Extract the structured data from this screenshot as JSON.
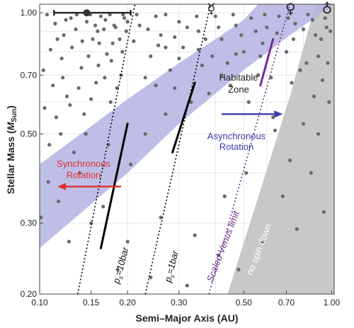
{
  "chart_data": {
    "type": "scatter",
    "x_scale": "log",
    "y_scale": "log",
    "xlim": [
      0.1,
      1.02
    ],
    "ylim": [
      0.2,
      1.05
    ],
    "xlabel": "Semi–Major Axis (AU)",
    "ylabel_main": "Stellar Mass (",
    "ylabel_unit": "M",
    "ylabel_sub": "Sun",
    "ylabel_close": ")",
    "xticks": [
      {
        "value": 0.1,
        "label": "0.10"
      },
      {
        "value": 0.15,
        "label": "0.15"
      },
      {
        "value": 0.2,
        "label": "0.20"
      },
      {
        "value": 0.3,
        "label": "0.30"
      },
      {
        "value": 0.5,
        "label": "0.50"
      },
      {
        "value": 0.7,
        "label": "0.70"
      },
      {
        "value": 1.0,
        "label": "1.00"
      }
    ],
    "yticks": [
      {
        "value": 0.2,
        "label": "0.20"
      },
      {
        "value": 0.3,
        "label": "0.30"
      },
      {
        "value": 0.5,
        "label": "0.50"
      },
      {
        "value": 0.7,
        "label": "0.70"
      },
      {
        "value": 1.0,
        "label": "1.00"
      }
    ],
    "grid": true,
    "planets": [
      {
        "name": "mercury",
        "symbol": "☿",
        "a": 0.387
      },
      {
        "name": "venus",
        "symbol": "♀",
        "a": 0.723
      },
      {
        "name": "earth",
        "symbol": "♁",
        "a": 1.0
      }
    ],
    "errorbar": {
      "x": 0.145,
      "xmin": 0.112,
      "xmax": 0.205,
      "y": 1.0
    },
    "habitable_zone": {
      "inner": [
        [
          0.1,
          0.26
        ],
        [
          0.2,
          0.4
        ],
        [
          0.3,
          0.53
        ],
        [
          0.5,
          0.72
        ],
        [
          0.72,
          0.88
        ],
        [
          1.02,
          1.05
        ]
      ],
      "outer": [
        [
          0.1,
          0.42
        ],
        [
          0.2,
          0.61
        ],
        [
          0.3,
          0.75
        ],
        [
          0.4,
          0.86
        ],
        [
          0.5,
          0.96
        ],
        [
          0.56,
          1.05
        ]
      ],
      "color": "#b3b3e3"
    },
    "no_spin_down_region": {
      "boundary": [
        [
          0.44,
          0.2
        ],
        [
          0.72,
          0.62
        ],
        [
          0.88,
          1.05
        ]
      ],
      "color": "#c8c8c8"
    },
    "lines": [
      {
        "name": "ps-10bar",
        "style": "dotted",
        "color": "#000000",
        "points": [
          [
            0.135,
            0.2
          ],
          [
            0.212,
            1.05
          ]
        ]
      },
      {
        "name": "ps-1bar",
        "style": "dotted",
        "color": "#000000",
        "points": [
          [
            0.23,
            0.2
          ],
          [
            0.385,
            1.05
          ]
        ]
      },
      {
        "name": "scaled-venus-limit",
        "style": "dotted",
        "color": "#6a2a8a",
        "points": [
          [
            0.38,
            0.2
          ],
          [
            0.72,
            1.05
          ]
        ]
      }
    ],
    "segments": [
      {
        "name": "ps-10bar-hz",
        "color": "#000000",
        "points": [
          [
            0.162,
            0.26
          ],
          [
            0.2,
            0.53
          ]
        ]
      },
      {
        "name": "ps-1bar-hz",
        "color": "#000000",
        "points": [
          [
            0.285,
            0.45
          ],
          [
            0.34,
            0.67
          ]
        ]
      },
      {
        "name": "venus-limit-hz",
        "color": "#7a2a9a",
        "points": [
          [
            0.57,
            0.66
          ],
          [
            0.63,
            0.86
          ]
        ]
      }
    ],
    "arrows": [
      {
        "name": "synchronous-arrow",
        "color": "#e03030",
        "from": [
          0.19,
          0.37
        ],
        "to": [
          0.115,
          0.37
        ]
      },
      {
        "name": "asynchronous-arrow",
        "color": "#3b3ba8",
        "from": [
          0.42,
          0.56
        ],
        "to": [
          0.68,
          0.56
        ]
      }
    ],
    "annotations": {
      "synchronous": {
        "line1": "Synchronous",
        "line2": "Rotation",
        "color": "#e03030"
      },
      "asynchronous": {
        "line1": "Asynchronous",
        "line2": "Rotation",
        "color": "#3b3ba8"
      },
      "habitable": {
        "line1": "Habitable",
        "line2": "Zone",
        "color": "#222222"
      },
      "ps10": {
        "sym": "p",
        "sub": "s",
        "text": "=10bar"
      },
      "ps1": {
        "sym": "p",
        "sub": "s",
        "text": "=1bar"
      },
      "venus_limit": {
        "text": "Scaled Venus limit",
        "color": "#6a2a8a"
      },
      "no_spin_down": {
        "text": "no spin down",
        "color": "#ffffff"
      }
    },
    "point_color": "#6a6a6a",
    "points": [
      [
        0.101,
        0.31
      ],
      [
        0.107,
        0.38
      ],
      [
        0.118,
        0.5
      ],
      [
        0.124,
        0.62
      ],
      [
        0.131,
        0.45
      ],
      [
        0.139,
        0.73
      ],
      [
        0.142,
        0.56
      ],
      [
        0.152,
        0.86
      ],
      [
        0.156,
        0.67
      ],
      [
        0.17,
        0.79
      ],
      [
        0.175,
        0.6
      ],
      [
        0.182,
        0.92
      ],
      [
        0.19,
        0.7
      ],
      [
        0.103,
        0.72
      ],
      [
        0.109,
        0.81
      ],
      [
        0.113,
        0.94
      ],
      [
        0.121,
        0.88
      ],
      [
        0.128,
        0.97
      ],
      [
        0.134,
        0.99
      ],
      [
        0.145,
        0.95
      ],
      [
        0.162,
        0.98
      ],
      [
        0.195,
        0.97
      ],
      [
        0.21,
        0.85
      ],
      [
        0.22,
        0.93
      ],
      [
        0.24,
        0.78
      ],
      [
        0.25,
        0.98
      ],
      [
        0.26,
        0.88
      ],
      [
        0.28,
        0.72
      ],
      [
        0.3,
        0.95
      ],
      [
        0.31,
        0.82
      ],
      [
        0.33,
        0.6
      ],
      [
        0.35,
        0.9
      ],
      [
        0.36,
        0.74
      ],
      [
        0.4,
        0.98
      ],
      [
        0.42,
        0.86
      ],
      [
        0.45,
        0.66
      ],
      [
        0.47,
        0.93
      ],
      [
        0.5,
        0.8
      ],
      [
        0.53,
        0.97
      ],
      [
        0.56,
        0.7
      ],
      [
        0.6,
        0.92
      ],
      [
        0.63,
        0.55
      ],
      [
        0.66,
        0.98
      ],
      [
        0.7,
        0.8
      ],
      [
        0.75,
        0.94
      ],
      [
        0.78,
        0.72
      ],
      [
        0.83,
        0.99
      ],
      [
        0.87,
        0.62
      ],
      [
        0.92,
        0.86
      ],
      [
        0.97,
        0.75
      ],
      [
        0.116,
        0.34
      ],
      [
        0.126,
        0.27
      ],
      [
        0.137,
        0.4
      ],
      [
        0.165,
        0.33
      ],
      [
        0.172,
        0.47
      ],
      [
        0.205,
        0.42
      ],
      [
        0.23,
        0.5
      ],
      [
        0.27,
        0.56
      ],
      [
        0.29,
        0.65
      ],
      [
        0.38,
        0.63
      ],
      [
        0.44,
        0.75
      ],
      [
        0.52,
        0.6
      ],
      [
        0.58,
        0.84
      ],
      [
        0.62,
        0.69
      ],
      [
        0.2,
        0.27
      ],
      [
        0.26,
        0.31
      ],
      [
        0.34,
        0.28
      ],
      [
        0.43,
        0.35
      ],
      [
        0.51,
        0.4
      ],
      [
        0.64,
        0.51
      ],
      [
        0.72,
        0.43
      ],
      [
        0.8,
        0.53
      ],
      [
        0.9,
        0.5
      ],
      [
        0.98,
        0.6
      ],
      [
        0.15,
        0.3
      ],
      [
        0.185,
        0.23
      ],
      [
        0.24,
        0.22
      ],
      [
        0.32,
        0.21
      ],
      [
        0.41,
        0.25
      ],
      [
        0.48,
        0.23
      ],
      [
        0.58,
        0.27
      ],
      [
        0.68,
        0.35
      ],
      [
        0.76,
        0.29
      ],
      [
        0.85,
        0.4
      ],
      [
        0.94,
        0.32
      ],
      [
        0.104,
        0.58
      ],
      [
        0.111,
        0.66
      ],
      [
        0.119,
        0.77
      ],
      [
        0.129,
        0.82
      ],
      [
        0.147,
        0.78
      ],
      [
        0.158,
        0.9
      ],
      [
        0.168,
        0.96
      ],
      [
        0.178,
        0.84
      ],
      [
        0.198,
        0.9
      ],
      [
        0.215,
        0.99
      ],
      [
        0.235,
        0.91
      ],
      [
        0.255,
        0.83
      ],
      [
        0.27,
        0.99
      ],
      [
        0.29,
        0.87
      ],
      [
        0.32,
        0.92
      ],
      [
        0.345,
        0.98
      ],
      [
        0.37,
        0.86
      ],
      [
        0.39,
        0.78
      ],
      [
        0.41,
        0.92
      ],
      [
        0.46,
        0.99
      ],
      [
        0.49,
        0.88
      ],
      [
        0.55,
        0.9
      ],
      [
        0.59,
        0.99
      ],
      [
        0.65,
        0.89
      ],
      [
        0.71,
        0.97
      ],
      [
        0.74,
        0.86
      ],
      [
        0.8,
        0.91
      ],
      [
        0.86,
        0.96
      ],
      [
        0.9,
        0.78
      ],
      [
        0.95,
        0.97
      ],
      [
        0.99,
        0.9
      ],
      [
        0.106,
        0.99
      ],
      [
        0.115,
        0.86
      ],
      [
        0.123,
        0.96
      ],
      [
        0.133,
        0.91
      ],
      [
        0.14,
        0.85
      ],
      [
        0.149,
        0.99
      ],
      [
        0.155,
        0.93
      ],
      [
        0.16,
        0.84
      ],
      [
        0.166,
        0.91
      ],
      [
        0.174,
        0.99
      ],
      [
        0.18,
        0.93
      ],
      [
        0.188,
        0.86
      ],
      [
        0.193,
        0.99
      ],
      [
        0.2,
        0.95
      ],
      [
        0.108,
        0.47
      ],
      [
        0.114,
        0.55
      ],
      [
        0.12,
        0.69
      ],
      [
        0.127,
        0.59
      ],
      [
        0.136,
        0.65
      ],
      [
        0.144,
        0.5
      ],
      [
        0.15,
        0.61
      ],
      [
        0.159,
        0.74
      ],
      [
        0.167,
        0.69
      ],
      [
        0.176,
        0.76
      ],
      [
        0.184,
        0.65
      ],
      [
        0.192,
        0.8
      ],
      [
        0.23,
        0.69
      ],
      [
        0.25,
        0.66
      ],
      [
        0.3,
        0.77
      ],
      [
        0.27,
        0.82
      ],
      [
        0.35,
        0.81
      ],
      [
        0.42,
        0.7
      ],
      [
        0.47,
        0.79
      ],
      [
        0.57,
        0.78
      ],
      [
        0.73,
        0.67
      ],
      [
        0.82,
        0.75
      ],
      [
        0.88,
        0.88
      ],
      [
        0.93,
        0.68
      ],
      [
        0.96,
        0.92
      ]
    ]
  }
}
